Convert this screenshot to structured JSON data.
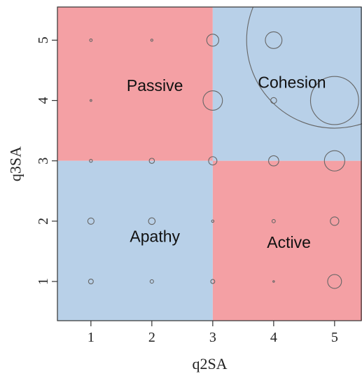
{
  "chart_data": {
    "type": "scatter",
    "title": "",
    "xlabel": "q2SA",
    "ylabel": "q3SA",
    "xlim": [
      0.45,
      5.45
    ],
    "ylim": [
      0.35,
      5.55
    ],
    "x_ticks": [
      "1",
      "2",
      "3",
      "4",
      "5"
    ],
    "y_ticks": [
      "1",
      "2",
      "3",
      "4",
      "5"
    ],
    "grid": false,
    "quadrant_split": {
      "x": 3,
      "y": 3
    },
    "regions": [
      {
        "label": "Passive",
        "x": [
          0.45,
          3
        ],
        "y": [
          3,
          5.55
        ],
        "color": "#f4a0a4",
        "label_x": 2.05,
        "label_y": 4.25
      },
      {
        "label": "Cohesion",
        "x": [
          3,
          5.45
        ],
        "y": [
          3,
          5.55
        ],
        "color": "#b8d0e8",
        "label_x": 4.3,
        "label_y": 4.3
      },
      {
        "label": "Apathy",
        "x": [
          0.45,
          3
        ],
        "y": [
          0.35,
          3
        ],
        "color": "#b8d0e8",
        "label_x": 2.05,
        "label_y": 1.75
      },
      {
        "label": "Active",
        "x": [
          3,
          5.45
        ],
        "y": [
          0.35,
          3
        ],
        "color": "#f4a0a4",
        "label_x": 4.25,
        "label_y": 1.65
      }
    ],
    "points": [
      {
        "x": 1,
        "y": 5,
        "size": 1.4
      },
      {
        "x": 2,
        "y": 5,
        "size": 1.2
      },
      {
        "x": 3,
        "y": 5,
        "size": 6.5
      },
      {
        "x": 4,
        "y": 5,
        "size": 9
      },
      {
        "x": 5,
        "y": 5,
        "size": 95
      },
      {
        "x": 1,
        "y": 4,
        "size": 1.0
      },
      {
        "x": 3,
        "y": 4,
        "size": 10.5
      },
      {
        "x": 4,
        "y": 4,
        "size": 3.2
      },
      {
        "x": 5,
        "y": 4,
        "size": 26
      },
      {
        "x": 1,
        "y": 3,
        "size": 1.6
      },
      {
        "x": 2,
        "y": 3,
        "size": 2.8
      },
      {
        "x": 3,
        "y": 3,
        "size": 4.5
      },
      {
        "x": 4,
        "y": 3,
        "size": 5.5
      },
      {
        "x": 5,
        "y": 3,
        "size": 11
      },
      {
        "x": 1,
        "y": 2,
        "size": 3.4
      },
      {
        "x": 2,
        "y": 2,
        "size": 3.6
      },
      {
        "x": 3,
        "y": 2,
        "size": 1.3
      },
      {
        "x": 4,
        "y": 2,
        "size": 1.8
      },
      {
        "x": 5,
        "y": 2,
        "size": 4.6
      },
      {
        "x": 1,
        "y": 1,
        "size": 2.6
      },
      {
        "x": 2,
        "y": 1,
        "size": 1.9
      },
      {
        "x": 3,
        "y": 1,
        "size": 2.2
      },
      {
        "x": 4,
        "y": 1,
        "size": 0.6
      },
      {
        "x": 5,
        "y": 1,
        "size": 7.5
      }
    ]
  }
}
